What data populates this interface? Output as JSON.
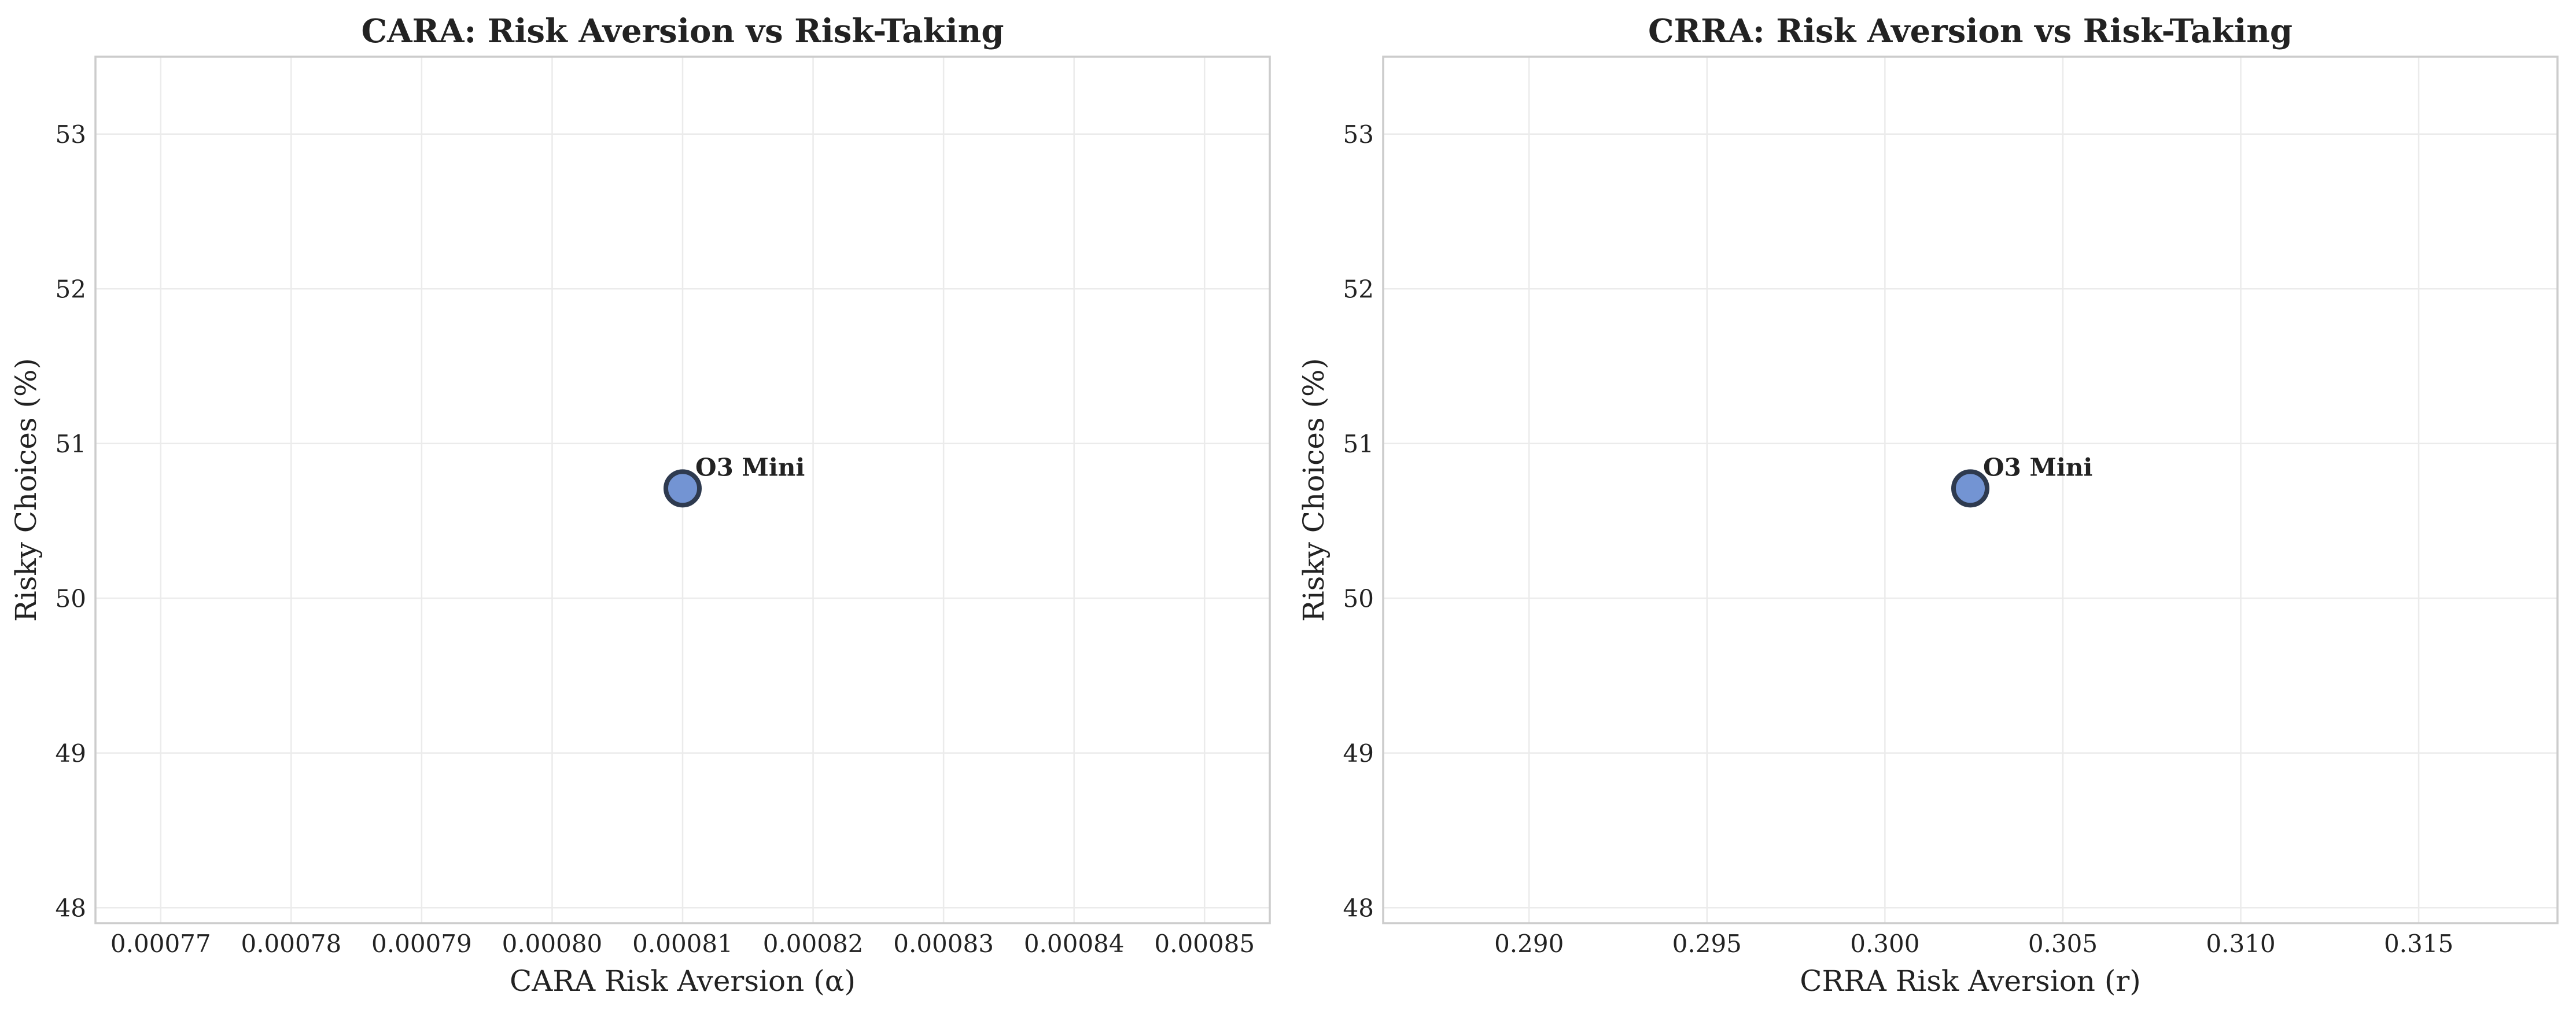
{
  "chart_data": [
    {
      "type": "scatter",
      "title": "CARA: Risk Aversion vs Risk-Taking",
      "xlabel": "CARA Risk Aversion (α)",
      "ylabel": "Risky Choices (%)",
      "xlim": [
        0.000765,
        0.000855
      ],
      "ylim": [
        47.9,
        53.5
      ],
      "xticks": [
        0.00077,
        0.00078,
        0.00079,
        0.0008,
        0.00081,
        0.00082,
        0.00083,
        0.00084,
        0.00085
      ],
      "xtick_labels": [
        "0.00077",
        "0.00078",
        "0.00079",
        "0.00080",
        "0.00081",
        "0.00082",
        "0.00083",
        "0.00084",
        "0.00085"
      ],
      "yticks": [
        48,
        49,
        50,
        51,
        52,
        53
      ],
      "ytick_labels": [
        "48",
        "49",
        "50",
        "51",
        "52",
        "53"
      ],
      "grid": true,
      "points": [
        {
          "label": "O3 Mini",
          "x": 0.00081,
          "y": 50.71
        }
      ]
    },
    {
      "type": "scatter",
      "title": "CRRA: Risk Aversion vs Risk-Taking",
      "xlabel": "CRRA Risk Aversion (r)",
      "ylabel": "Risky Choices (%)",
      "xlim": [
        0.2859,
        0.3189
      ],
      "ylim": [
        47.9,
        53.5
      ],
      "xticks": [
        0.29,
        0.295,
        0.3,
        0.305,
        0.31,
        0.315
      ],
      "xtick_labels": [
        "0.290",
        "0.295",
        "0.300",
        "0.305",
        "0.310",
        "0.315"
      ],
      "yticks": [
        48,
        49,
        50,
        51,
        52,
        53
      ],
      "ytick_labels": [
        "48",
        "49",
        "50",
        "51",
        "52",
        "53"
      ],
      "grid": true,
      "points": [
        {
          "label": "O3 Mini",
          "x": 0.3024,
          "y": 50.71
        }
      ]
    }
  ],
  "colors": {
    "marker_fill": "#7394d3",
    "marker_edge": "#2e3a4f",
    "frame": "#cccccc",
    "grid": "#ebebeb",
    "text": "#222222"
  }
}
